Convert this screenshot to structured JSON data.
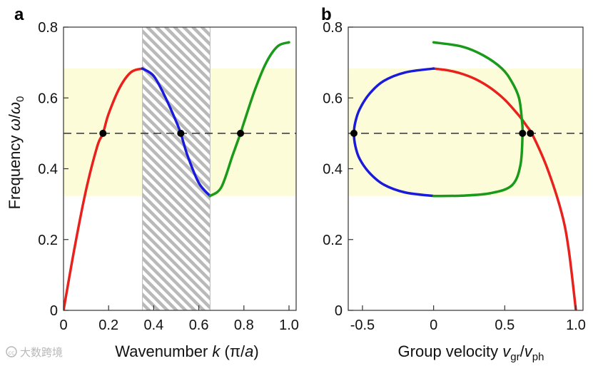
{
  "colors": {
    "band": "#fdfcd9",
    "branch1": "#e8211d",
    "branch2": "#1a1adb",
    "branch3": "#1a9a1a",
    "dashed": "#333333",
    "marker": "#000000",
    "hatch": "#b9b9b9"
  },
  "chart_data": [
    {
      "panel": "a",
      "type": "line",
      "xlabel": {
        "prefix": "Wavenumber ",
        "var": "k",
        "unit_open": " (π/",
        "unit_var": "a",
        "unit_close": ")"
      },
      "ylabel": {
        "prefix": "Frequency ",
        "num": "ω",
        "slash": "/",
        "den": "ω",
        "den_sub": "0"
      },
      "xlim": [
        0,
        1.0
      ],
      "ylim": [
        0,
        0.8
      ],
      "xticks": [
        0,
        0.2,
        0.4,
        0.6,
        0.8,
        1.0
      ],
      "xtick_labels": [
        "0",
        "0.2",
        "0.4",
        "0.6",
        "0.8",
        "1.0"
      ],
      "yticks": [
        0,
        0.2,
        0.4,
        0.6,
        0.8
      ],
      "ytick_labels": [
        "0",
        "0.2",
        "0.4",
        "0.6",
        "0.8"
      ],
      "band": [
        0.323,
        0.683
      ],
      "hatched_x": [
        0.35,
        0.65
      ],
      "dashed_y": 0.5,
      "series": [
        {
          "name": "red-branch",
          "x": [
            0,
            0.05,
            0.1,
            0.15,
            0.175,
            0.2,
            0.25,
            0.3,
            0.35
          ],
          "y": [
            0,
            0.18,
            0.34,
            0.464,
            0.5,
            0.555,
            0.63,
            0.673,
            0.683
          ]
        },
        {
          "name": "blue-branch",
          "x": [
            0.35,
            0.4,
            0.45,
            0.5,
            0.52,
            0.55,
            0.6,
            0.65
          ],
          "y": [
            0.683,
            0.662,
            0.604,
            0.533,
            0.5,
            0.437,
            0.36,
            0.323
          ]
        },
        {
          "name": "green-branch",
          "x": [
            0.65,
            0.7,
            0.75,
            0.785,
            0.8,
            0.85,
            0.9,
            0.95,
            1.0
          ],
          "y": [
            0.323,
            0.348,
            0.438,
            0.5,
            0.53,
            0.625,
            0.701,
            0.746,
            0.757
          ]
        }
      ],
      "points": [
        {
          "x": 0.175,
          "y": 0.5
        },
        {
          "x": 0.52,
          "y": 0.5
        },
        {
          "x": 0.785,
          "y": 0.5
        }
      ]
    },
    {
      "panel": "b",
      "type": "line",
      "xlabel": {
        "prefix": "Group velocity ",
        "v1": "v",
        "sub1": "gr",
        "slash": "/",
        "v2": "v",
        "sub2": "ph"
      },
      "xlim": [
        -0.6,
        1.05
      ],
      "ylim": [
        0,
        0.8
      ],
      "xticks": [
        -0.5,
        0,
        0.5,
        1.0
      ],
      "xtick_labels": [
        "-0.5",
        "0",
        "0.5",
        "1.0"
      ],
      "yticks": [
        0,
        0.2,
        0.4,
        0.6,
        0.8
      ],
      "ytick_labels": [
        "0",
        "0.2",
        "0.4",
        "0.6",
        "0.8"
      ],
      "band": [
        0.323,
        0.683
      ],
      "dashed_y": 0.5,
      "series": [
        {
          "name": "red-branch",
          "x": [
            0,
            0.1,
            0.2,
            0.3,
            0.4,
            0.5,
            0.6,
            0.65,
            0.7,
            0.8,
            0.9,
            0.95,
            1.0
          ],
          "y": [
            0.683,
            0.678,
            0.668,
            0.652,
            0.628,
            0.595,
            0.55,
            0.523,
            0.492,
            0.4,
            0.275,
            0.17,
            0.0
          ]
        },
        {
          "name": "blue-branch",
          "x": [
            0,
            -0.2,
            -0.35,
            -0.45,
            -0.52,
            -0.55,
            -0.56,
            -0.55,
            -0.52,
            -0.45,
            -0.35,
            -0.2,
            0
          ],
          "y": [
            0.683,
            0.672,
            0.648,
            0.612,
            0.568,
            0.532,
            0.5,
            0.464,
            0.428,
            0.388,
            0.355,
            0.333,
            0.323
          ]
        },
        {
          "name": "green-branch",
          "x": [
            0,
            0.2,
            0.4,
            0.55,
            0.61,
            0.625,
            0.62,
            0.6,
            0.55,
            0.48,
            0.35,
            0.2,
            0
          ],
          "y": [
            0.323,
            0.324,
            0.331,
            0.353,
            0.41,
            0.5,
            0.54,
            0.6,
            0.645,
            0.683,
            0.72,
            0.745,
            0.757
          ]
        }
      ],
      "points": [
        {
          "x": -0.56,
          "y": 0.5
        },
        {
          "x": 0.625,
          "y": 0.5
        },
        {
          "x": 0.68,
          "y": 0.5
        }
      ]
    }
  ],
  "watermark": {
    "icon": "cc-circle-icon",
    "text": "大数跨境"
  }
}
